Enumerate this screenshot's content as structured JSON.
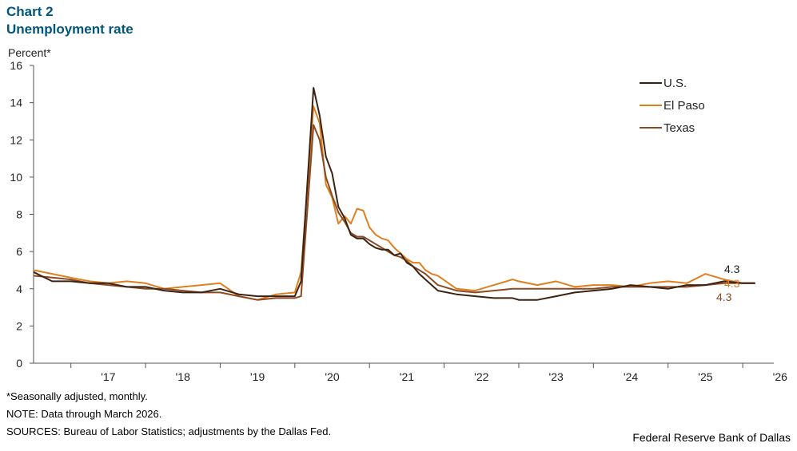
{
  "header": {
    "chart_label": "Chart 2",
    "title": "Unemployment rate"
  },
  "footer": {
    "note1": "*Seasonally adjusted, monthly.",
    "note2": "NOTE: Data through March 2026.",
    "sources": "SOURCES: Bureau of Labor Statistics; adjustments by the Dallas Fed.",
    "credit": "Federal Reserve Bank of Dallas"
  },
  "chart_data": {
    "type": "line",
    "title": "Unemployment rate",
    "ylabel": "Percent*",
    "ylim": [
      0,
      16
    ],
    "yticks": [
      0,
      2,
      4,
      6,
      8,
      10,
      12,
      14,
      16
    ],
    "xlim": [
      "2016-07",
      "2026-06"
    ],
    "xticks": [
      {
        "label": "'17",
        "year": 2017
      },
      {
        "label": "'18",
        "year": 2018
      },
      {
        "label": "'19",
        "year": 2019
      },
      {
        "label": "'20",
        "year": 2020
      },
      {
        "label": "'21",
        "year": 2021
      },
      {
        "label": "'22",
        "year": 2022
      },
      {
        "label": "'23",
        "year": 2023
      },
      {
        "label": "'24",
        "year": 2024
      },
      {
        "label": "'25",
        "year": 2025
      },
      {
        "label": "'26",
        "year": 2026
      }
    ],
    "grid": false,
    "legend": "top-right",
    "series": [
      {
        "name": "U.S.",
        "color": "#3b2314",
        "end_label": "4.3",
        "points": [
          [
            "2016-07",
            4.9
          ],
          [
            "2016-10",
            4.4
          ],
          [
            "2017-01",
            4.4
          ],
          [
            "2017-04",
            4.3
          ],
          [
            "2017-07",
            4.3
          ],
          [
            "2017-10",
            4.1
          ],
          [
            "2018-01",
            4.1
          ],
          [
            "2018-04",
            3.9
          ],
          [
            "2018-07",
            3.8
          ],
          [
            "2018-10",
            3.8
          ],
          [
            "2019-01",
            4.0
          ],
          [
            "2019-04",
            3.7
          ],
          [
            "2019-07",
            3.6
          ],
          [
            "2019-10",
            3.6
          ],
          [
            "2020-01",
            3.6
          ],
          [
            "2020-02",
            4.4
          ],
          [
            "2020-04",
            14.8
          ],
          [
            "2020-05",
            13.3
          ],
          [
            "2020-06",
            11.1
          ],
          [
            "2020-07",
            10.2
          ],
          [
            "2020-08",
            8.4
          ],
          [
            "2020-09",
            7.8
          ],
          [
            "2020-10",
            6.9
          ],
          [
            "2020-11",
            6.7
          ],
          [
            "2020-12",
            6.7
          ],
          [
            "2021-01",
            6.4
          ],
          [
            "2021-02",
            6.2
          ],
          [
            "2021-03",
            6.1
          ],
          [
            "2021-04",
            6.1
          ],
          [
            "2021-05",
            5.8
          ],
          [
            "2021-06",
            5.9
          ],
          [
            "2021-07",
            5.4
          ],
          [
            "2021-08",
            5.2
          ],
          [
            "2021-09",
            4.8
          ],
          [
            "2021-10",
            4.5
          ],
          [
            "2021-11",
            4.2
          ],
          [
            "2021-12",
            3.9
          ],
          [
            "2022-03",
            3.7
          ],
          [
            "2022-06",
            3.6
          ],
          [
            "2022-09",
            3.5
          ],
          [
            "2022-12",
            3.5
          ],
          [
            "2023-01",
            3.4
          ],
          [
            "2023-04",
            3.4
          ],
          [
            "2023-07",
            3.6
          ],
          [
            "2023-10",
            3.8
          ],
          [
            "2024-01",
            3.9
          ],
          [
            "2024-04",
            4.0
          ],
          [
            "2024-07",
            4.2
          ],
          [
            "2024-10",
            4.1
          ],
          [
            "2025-01",
            4.0
          ],
          [
            "2025-04",
            4.2
          ],
          [
            "2025-07",
            4.2
          ],
          [
            "2025-10",
            4.4
          ],
          [
            "2026-01",
            4.3
          ],
          [
            "2026-03",
            4.3
          ]
        ]
      },
      {
        "name": "El Paso",
        "color": "#e07f1f",
        "end_label": "4.3",
        "points": [
          [
            "2016-07",
            5.0
          ],
          [
            "2016-10",
            4.8
          ],
          [
            "2017-01",
            4.6
          ],
          [
            "2017-04",
            4.4
          ],
          [
            "2017-07",
            4.3
          ],
          [
            "2017-10",
            4.4
          ],
          [
            "2018-01",
            4.3
          ],
          [
            "2018-04",
            4.0
          ],
          [
            "2018-07",
            4.1
          ],
          [
            "2018-10",
            4.2
          ],
          [
            "2019-01",
            4.3
          ],
          [
            "2019-04",
            3.6
          ],
          [
            "2019-07",
            3.4
          ],
          [
            "2019-10",
            3.7
          ],
          [
            "2020-01",
            3.8
          ],
          [
            "2020-02",
            4.9
          ],
          [
            "2020-04",
            13.8
          ],
          [
            "2020-05",
            12.9
          ],
          [
            "2020-06",
            9.6
          ],
          [
            "2020-07",
            8.9
          ],
          [
            "2020-08",
            7.5
          ],
          [
            "2020-09",
            7.9
          ],
          [
            "2020-10",
            7.5
          ],
          [
            "2020-11",
            8.3
          ],
          [
            "2020-12",
            8.2
          ],
          [
            "2021-01",
            7.3
          ],
          [
            "2021-02",
            6.9
          ],
          [
            "2021-03",
            6.7
          ],
          [
            "2021-04",
            6.6
          ],
          [
            "2021-05",
            6.2
          ],
          [
            "2021-06",
            5.9
          ],
          [
            "2021-07",
            5.6
          ],
          [
            "2021-08",
            5.4
          ],
          [
            "2021-09",
            5.4
          ],
          [
            "2021-10",
            5.0
          ],
          [
            "2021-11",
            4.8
          ],
          [
            "2021-12",
            4.7
          ],
          [
            "2022-03",
            4.0
          ],
          [
            "2022-06",
            3.9
          ],
          [
            "2022-09",
            4.2
          ],
          [
            "2022-12",
            4.5
          ],
          [
            "2023-01",
            4.4
          ],
          [
            "2023-04",
            4.2
          ],
          [
            "2023-07",
            4.4
          ],
          [
            "2023-10",
            4.1
          ],
          [
            "2024-01",
            4.2
          ],
          [
            "2024-04",
            4.2
          ],
          [
            "2024-07",
            4.1
          ],
          [
            "2024-10",
            4.3
          ],
          [
            "2025-01",
            4.4
          ],
          [
            "2025-04",
            4.3
          ],
          [
            "2025-07",
            4.8
          ],
          [
            "2025-10",
            4.5
          ],
          [
            "2026-01",
            4.3
          ],
          [
            "2026-03",
            4.3
          ]
        ]
      },
      {
        "name": "Texas",
        "color": "#8a4a24",
        "end_label": "4.3",
        "points": [
          [
            "2016-07",
            4.7
          ],
          [
            "2016-10",
            4.6
          ],
          [
            "2017-01",
            4.5
          ],
          [
            "2017-04",
            4.3
          ],
          [
            "2017-07",
            4.2
          ],
          [
            "2017-10",
            4.1
          ],
          [
            "2018-01",
            4.0
          ],
          [
            "2018-04",
            4.0
          ],
          [
            "2018-07",
            3.9
          ],
          [
            "2018-10",
            3.8
          ],
          [
            "2019-01",
            3.8
          ],
          [
            "2019-04",
            3.6
          ],
          [
            "2019-07",
            3.4
          ],
          [
            "2019-10",
            3.5
          ],
          [
            "2020-01",
            3.5
          ],
          [
            "2020-02",
            3.6
          ],
          [
            "2020-04",
            12.8
          ],
          [
            "2020-05",
            12.0
          ],
          [
            "2020-06",
            10.0
          ],
          [
            "2020-07",
            9.0
          ],
          [
            "2020-08",
            8.1
          ],
          [
            "2020-09",
            7.6
          ],
          [
            "2020-10",
            7.0
          ],
          [
            "2020-11",
            6.8
          ],
          [
            "2020-12",
            6.8
          ],
          [
            "2021-01",
            6.6
          ],
          [
            "2021-02",
            6.4
          ],
          [
            "2021-03",
            6.2
          ],
          [
            "2021-04",
            6.0
          ],
          [
            "2021-05",
            5.8
          ],
          [
            "2021-06",
            5.7
          ],
          [
            "2021-07",
            5.5
          ],
          [
            "2021-08",
            5.2
          ],
          [
            "2021-09",
            5.0
          ],
          [
            "2021-10",
            4.8
          ],
          [
            "2021-11",
            4.5
          ],
          [
            "2021-12",
            4.2
          ],
          [
            "2022-03",
            3.9
          ],
          [
            "2022-06",
            3.8
          ],
          [
            "2022-09",
            3.9
          ],
          [
            "2022-12",
            4.0
          ],
          [
            "2023-01",
            4.0
          ],
          [
            "2023-04",
            4.0
          ],
          [
            "2023-07",
            4.0
          ],
          [
            "2023-10",
            4.0
          ],
          [
            "2024-01",
            4.0
          ],
          [
            "2024-04",
            4.1
          ],
          [
            "2024-07",
            4.1
          ],
          [
            "2024-10",
            4.1
          ],
          [
            "2025-01",
            4.1
          ],
          [
            "2025-04",
            4.1
          ],
          [
            "2025-07",
            4.2
          ],
          [
            "2025-10",
            4.3
          ],
          [
            "2026-01",
            4.3
          ],
          [
            "2026-03",
            4.3
          ]
        ]
      }
    ]
  }
}
